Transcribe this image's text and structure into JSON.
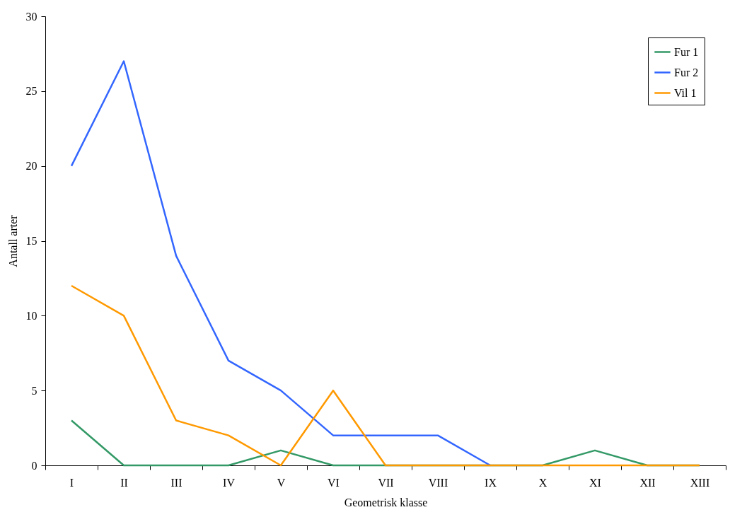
{
  "chart_data": {
    "type": "line",
    "xlabel": "Geometrisk klasse",
    "ylabel": "Antall arter",
    "categories": [
      "I",
      "II",
      "III",
      "IV",
      "V",
      "VI",
      "VII",
      "VIII",
      "IX",
      "X",
      "XI",
      "XII",
      "XIII"
    ],
    "series": [
      {
        "name": "Fur 1",
        "color": "#339966",
        "values": [
          3,
          0,
          0,
          0,
          1,
          0,
          0,
          0,
          0,
          0,
          1,
          0,
          0
        ]
      },
      {
        "name": "Fur 2",
        "color": "#3366ff",
        "values": [
          20,
          27,
          14,
          7,
          5,
          2,
          2,
          2,
          0,
          null,
          null,
          null,
          null
        ]
      },
      {
        "name": "Vil 1",
        "color": "#ff9900",
        "values": [
          12,
          10,
          3,
          2,
          0,
          5,
          0,
          0,
          0,
          0,
          0,
          0,
          0
        ]
      }
    ],
    "ylim": [
      0,
      30
    ],
    "yticks": [
      0,
      5,
      10,
      15,
      20,
      25,
      30
    ],
    "grid": false,
    "legend": "top right",
    "marker": "none",
    "line_style": "solid"
  }
}
